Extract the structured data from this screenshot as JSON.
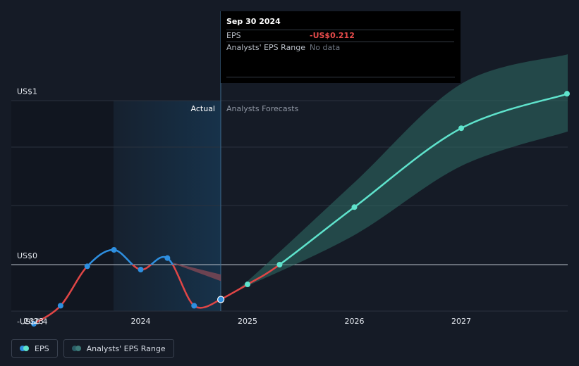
{
  "tooltip": {
    "date": "Sep 30 2024",
    "eps_label": "EPS",
    "eps_value": "-US$0.212",
    "range_label": "Analysts' EPS Range",
    "range_value": "No data"
  },
  "regions": {
    "actual": "Actual",
    "forecast": "Analysts Forecasts"
  },
  "legend": {
    "eps": "EPS",
    "range": "Analysts' EPS Range"
  },
  "colors": {
    "background": "#151b26",
    "eps_positive": "#2e8fe0",
    "eps_negative": "#e04646",
    "forecast": "#5fe3cc",
    "range_fill": "#2f6e66",
    "past_range": "#8a4a56",
    "actual_highlight": "#17324a"
  },
  "chart_data": {
    "type": "line",
    "y_axis_labels": [
      {
        "value": 1,
        "label": "US$1"
      },
      {
        "value": 0,
        "label": "US$0"
      },
      {
        "value": -0.4,
        "label": "-US$0.4"
      }
    ],
    "x_ticks": [
      {
        "value": 2023.0,
        "label": "2023"
      },
      {
        "value": 2024.0,
        "label": "2024"
      },
      {
        "value": 2025.0,
        "label": "2025"
      },
      {
        "value": 2026.0,
        "label": "2026"
      },
      {
        "value": 2027.0,
        "label": "2027"
      }
    ],
    "ylim": [
      -0.4,
      1
    ],
    "xlim": [
      2022.79,
      2027.99
    ],
    "actual_end": 2024.75,
    "series": [
      {
        "name": "EPS",
        "kind": "actual",
        "points": [
          [
            2023.0,
            -0.36
          ],
          [
            2023.25,
            -0.25
          ],
          [
            2023.5,
            -0.01
          ],
          [
            2023.75,
            0.09
          ],
          [
            2024.0,
            -0.03
          ],
          [
            2024.25,
            0.04
          ],
          [
            2024.5,
            -0.25
          ],
          [
            2024.75,
            -0.212
          ]
        ]
      },
      {
        "name": "EPS",
        "kind": "forecast",
        "points": [
          [
            2024.75,
            -0.212
          ],
          [
            2025.0,
            -0.12
          ],
          [
            2025.3,
            0.0
          ],
          [
            2026.0,
            0.35
          ],
          [
            2027.0,
            0.83
          ],
          [
            2028.0,
            1.04
          ]
        ]
      }
    ],
    "range": {
      "name": "Analysts' EPS Range",
      "upper": [
        [
          2025.0,
          -0.1
        ],
        [
          2026.0,
          0.5
        ],
        [
          2027.0,
          1.1
        ],
        [
          2028.0,
          1.28
        ]
      ],
      "lower": [
        [
          2025.0,
          -0.13
        ],
        [
          2026.0,
          0.18
        ],
        [
          2027.0,
          0.6
        ],
        [
          2028.0,
          0.81
        ]
      ]
    },
    "past_range": {
      "upper": [
        [
          2024.25,
          0.02
        ],
        [
          2024.75,
          -0.06
        ]
      ],
      "lower": [
        [
          2024.25,
          0.02
        ],
        [
          2024.75,
          -0.1
        ]
      ]
    }
  }
}
